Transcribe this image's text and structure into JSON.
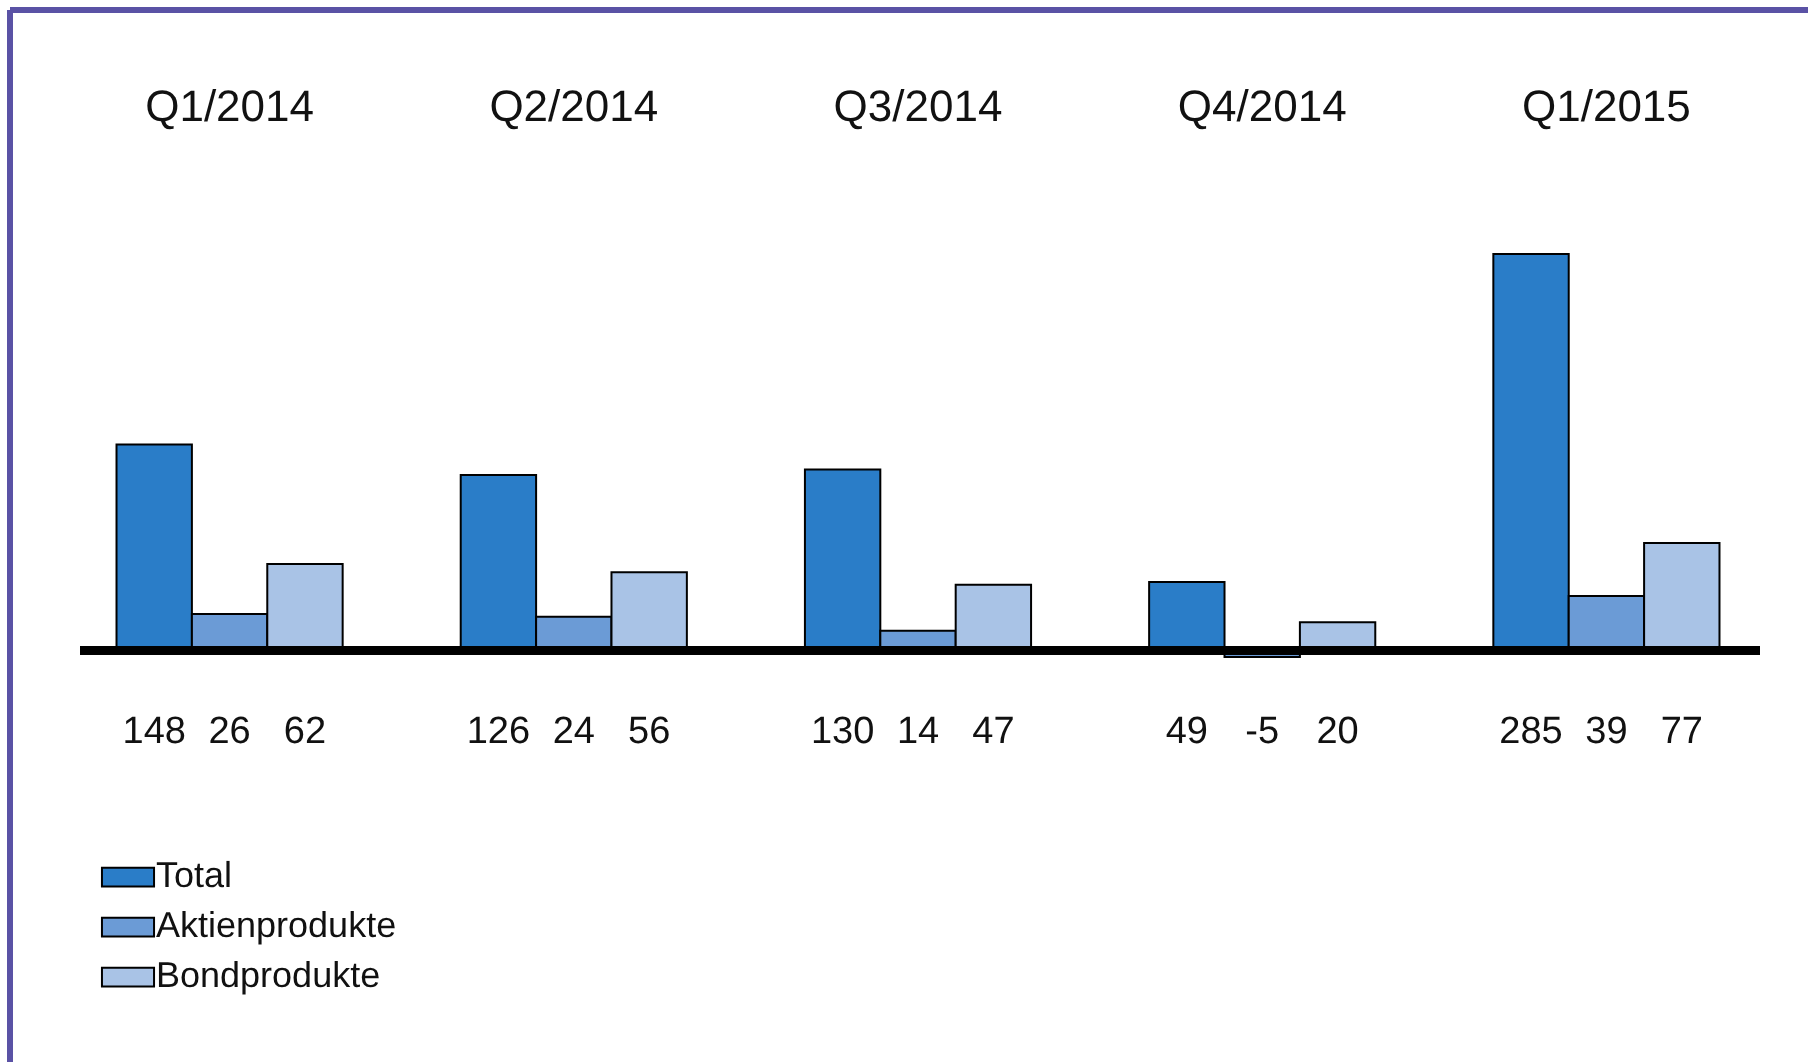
{
  "chart_data": {
    "type": "bar",
    "categories": [
      "Q1/2014",
      "Q2/2014",
      "Q3/2014",
      "Q4/2014",
      "Q1/2015"
    ],
    "series": [
      {
        "name": "Total",
        "color": "#2a7dc8",
        "values": [
          148,
          126,
          130,
          49,
          285
        ]
      },
      {
        "name": "Aktienprodukte",
        "color": "#6b9bd6",
        "values": [
          26,
          24,
          14,
          -5,
          39
        ]
      },
      {
        "name": "Bondprodukte",
        "color": "#a9c3e6",
        "values": [
          62,
          56,
          47,
          20,
          77
        ]
      }
    ],
    "data_labels": true,
    "legend": "bottom left",
    "grid": false
  }
}
